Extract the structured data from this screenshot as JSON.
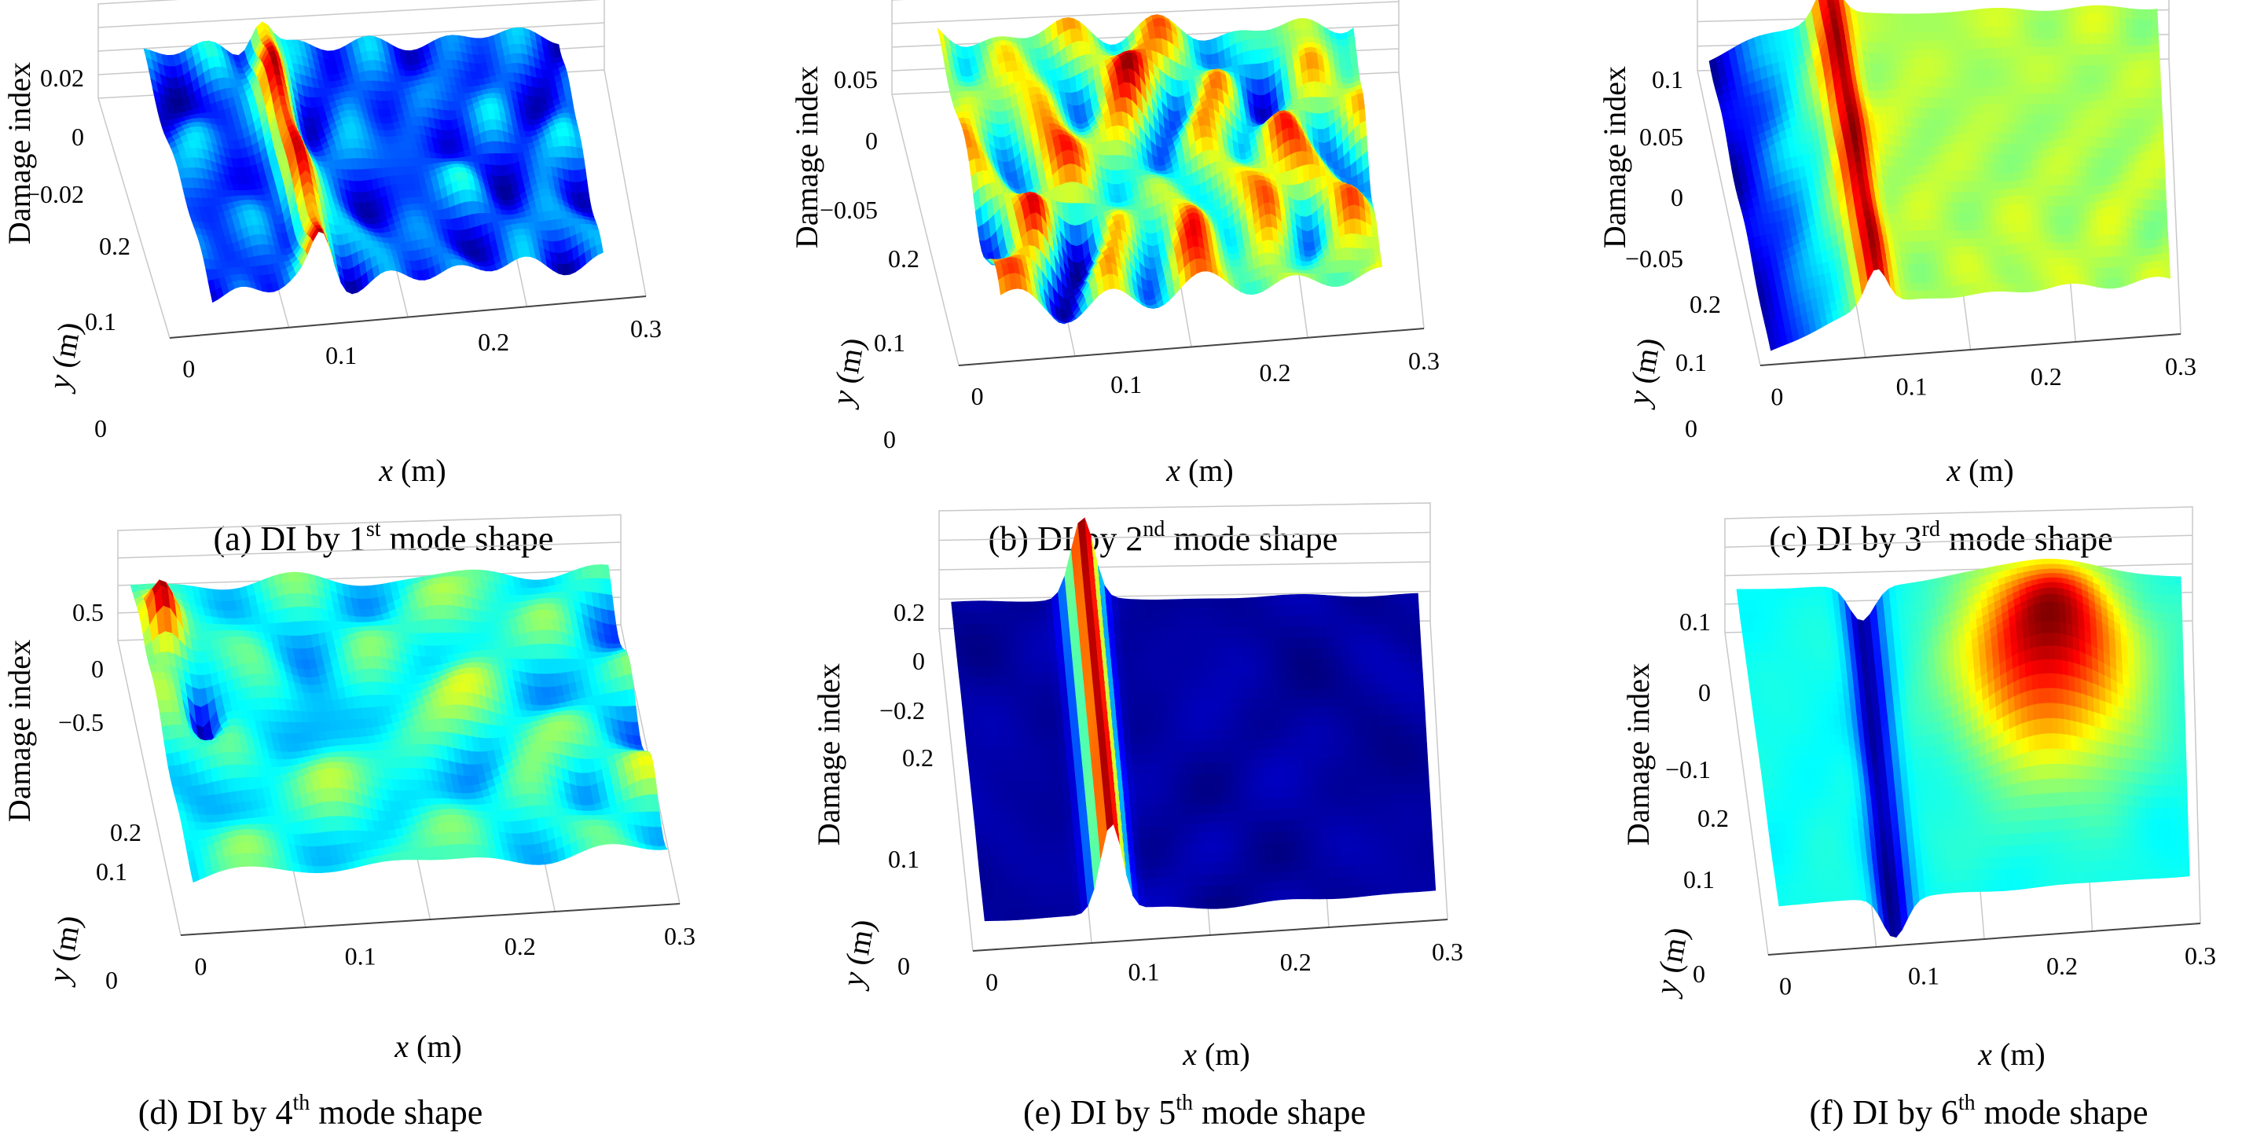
{
  "figure": {
    "cmap": [
      "#00007f",
      "#0000ff",
      "#007fff",
      "#00ffff",
      "#7fff7f",
      "#ffff00",
      "#ff7f00",
      "#ff0000",
      "#7f0000"
    ]
  },
  "chart_data": [
    {
      "id": "a",
      "type": "surface",
      "caption": {
        "prefix": "(a) DI by 1",
        "sup": "st",
        "suffix": " mode shape"
      },
      "zlabel": "Damage index",
      "ylabel_var": "y",
      "ylabel_unit": " (m)",
      "xlabel_var": "x",
      "xlabel_unit": " (m)",
      "zticks": [
        "0.02",
        "0",
        "−0.02"
      ],
      "yticks": [
        "0.2",
        "0.1",
        "0"
      ],
      "xticks": [
        "0",
        "0.1",
        "0.2",
        "0.3"
      ],
      "zlim": [
        -0.03,
        0.02
      ],
      "xlim": [
        0,
        0.32
      ],
      "ylim": [
        0,
        0.25
      ],
      "features": [
        {
          "type": "ridge",
          "x": 0.09,
          "amp": 1.0,
          "width": 0.012
        },
        {
          "type": "noise",
          "amp": 0.35,
          "seed": 3
        }
      ]
    },
    {
      "id": "b",
      "type": "surface",
      "caption": {
        "prefix": "(b) DI by 2",
        "sup": "nd",
        "suffix": " mode shape"
      },
      "zlabel": "Damage index",
      "ylabel_var": "y",
      "ylabel_unit": " (m)",
      "xlabel_var": "x",
      "xlabel_unit": " (m)",
      "zticks": [
        "0.05",
        "0",
        "−0.05"
      ],
      "yticks": [
        "0.2",
        "0.1",
        "0"
      ],
      "xticks": [
        "0",
        "0.1",
        "0.2",
        "0.3"
      ],
      "zlim": [
        -0.06,
        0.05
      ],
      "xlim": [
        0,
        0.32
      ],
      "ylim": [
        0,
        0.25
      ],
      "features": [
        {
          "type": "noise",
          "amp": 0.9,
          "seed": 11
        }
      ]
    },
    {
      "id": "c",
      "type": "surface",
      "caption": {
        "prefix": "(c) DI by 3",
        "sup": "rd",
        "suffix": " mode shape"
      },
      "zlabel": "Damage index",
      "ylabel_var": "y",
      "ylabel_unit": " (m)",
      "xlabel_var": "x",
      "xlabel_unit": " (m)",
      "zticks": [
        "0.1",
        "0.05",
        "0",
        "−0.05"
      ],
      "yticks": [
        "0.2",
        "0.1",
        "0"
      ],
      "xticks": [
        "0",
        "0.1",
        "0.2",
        "0.3"
      ],
      "zlim": [
        -0.07,
        0.1
      ],
      "xlim": [
        0,
        0.32
      ],
      "ylim": [
        0,
        0.25
      ],
      "features": [
        {
          "type": "slope",
          "from": -0.9,
          "to": 0.25,
          "end": 0.08
        },
        {
          "type": "ridge",
          "x": 0.085,
          "amp": 1.0,
          "width": 0.012
        },
        {
          "type": "noise",
          "amp": 0.15,
          "seed": 5
        }
      ]
    },
    {
      "id": "d",
      "type": "surface",
      "caption": {
        "prefix": "(d) DI by 4",
        "sup": "th",
        "suffix": " mode shape"
      },
      "zlabel": "Damage index",
      "ylabel_var": "y",
      "ylabel_unit": " (m)",
      "xlabel_var": "x",
      "xlabel_unit": " (m)",
      "zticks": [
        "0.5",
        "0",
        "−0.5"
      ],
      "yticks": [
        "0.2",
        "0.1",
        "0"
      ],
      "xticks": [
        "0",
        "0.1",
        "0.2",
        "0.3"
      ],
      "zlim": [
        -0.6,
        0.5
      ],
      "xlim": [
        0,
        0.32
      ],
      "ylim": [
        0,
        0.25
      ],
      "features": [
        {
          "type": "bump",
          "x": 0.015,
          "y": 0.21,
          "amp": 1.0,
          "sx": 0.012,
          "sy": 0.02
        },
        {
          "type": "bump",
          "x": 0.03,
          "y": 0.14,
          "amp": -0.8,
          "sx": 0.01,
          "sy": 0.02
        },
        {
          "type": "noise",
          "amp": 0.25,
          "seed": 8
        }
      ]
    },
    {
      "id": "e",
      "type": "surface",
      "caption": {
        "prefix": "(e) DI by 5",
        "sup": "th",
        "suffix": " mode shape"
      },
      "zlabel": "Damage index",
      "ylabel_var": "y",
      "ylabel_unit": " (m)",
      "xlabel_var": "x",
      "xlabel_unit": " (m)",
      "zticks": [
        "0.2",
        "0",
        "−0.2"
      ],
      "yticks": [
        "0.2",
        "0.1",
        "0"
      ],
      "xticks": [
        "0",
        "0.1",
        "0.2",
        "0.3"
      ],
      "zlim": [
        -0.3,
        0.2
      ],
      "xlim": [
        0,
        0.32
      ],
      "ylim": [
        0,
        0.25
      ],
      "features": [
        {
          "type": "base",
          "value": -0.75
        },
        {
          "type": "ridge",
          "x": 0.09,
          "amp": 1.7,
          "width": 0.011
        },
        {
          "type": "noise",
          "amp": 0.05,
          "seed": 2
        }
      ]
    },
    {
      "id": "f",
      "type": "surface",
      "caption": {
        "prefix": "(f) DI by 6",
        "sup": "th",
        "suffix": " mode shape"
      },
      "zlabel": "Damage index",
      "ylabel_var": "y",
      "ylabel_unit": " (m)",
      "xlabel_var": "x",
      "xlabel_unit": " (m)",
      "zticks": [
        "0.1",
        "0",
        "−0.1"
      ],
      "yticks": [
        "0.2",
        "0.1",
        "0"
      ],
      "xticks": [
        "0",
        "0.1",
        "0.2",
        "0.3"
      ],
      "zlim": [
        -0.15,
        0.1
      ],
      "xlim": [
        0,
        0.32
      ],
      "ylim": [
        0,
        0.25
      ],
      "features": [
        {
          "type": "base",
          "value": -0.2
        },
        {
          "type": "ridge",
          "x": 0.09,
          "amp": -0.75,
          "width": 0.013
        },
        {
          "type": "bump",
          "x": 0.22,
          "y": 0.17,
          "amp": 1.25,
          "sx": 0.06,
          "sy": 0.08
        },
        {
          "type": "noise",
          "amp": 0.05,
          "seed": 4
        }
      ]
    }
  ]
}
